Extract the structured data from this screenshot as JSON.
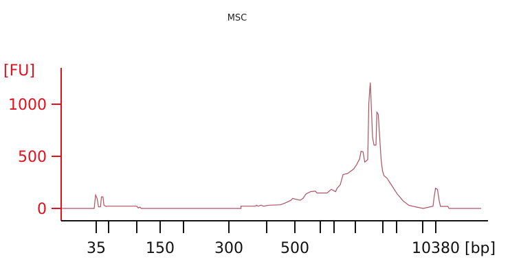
{
  "chart_data": {
    "type": "line",
    "title": "MSC",
    "xlabel": "[bp]",
    "ylabel": "[FU]",
    "x_scale": "ladder (nonlinear, log-like)",
    "x_ticks": [
      35,
      50,
      100,
      150,
      200,
      300,
      400,
      500,
      600,
      700,
      1000,
      2000,
      3000,
      7000,
      10380
    ],
    "x_tick_labels": [
      "35",
      "",
      "",
      "150",
      "",
      "300",
      "",
      "500",
      "",
      "",
      "",
      "",
      "",
      "",
      "10380"
    ],
    "y_ticks": [
      0,
      500,
      1000
    ],
    "y_tick_labels": [
      "0",
      "500",
      "1000"
    ],
    "ylim": [
      0,
      1300
    ],
    "grid": false,
    "legend": "none",
    "colors": {
      "trace": "#b0505e",
      "y_axis": "#e0101e",
      "x_axis": "#111111"
    },
    "series": [
      {
        "x": [
          13,
          33,
          34.4,
          35.9,
          37.4,
          39.6,
          40.7,
          42.5,
          43.7,
          46.4,
          50,
          50.4,
          52,
          100,
          102.7,
          105.4,
          108.2,
          329,
          329,
          368,
          370,
          375,
          383,
          391,
          407,
          446,
          463,
          485,
          491,
          519,
          530,
          542,
          560,
          579,
          586,
          647,
          679,
          718,
          737,
          776,
          814,
          880,
          974,
          1037,
          1114,
          1155,
          1215,
          1269,
          1365,
          1404,
          1456,
          1487,
          1542,
          1599,
          1682,
          1719,
          1782,
          1847,
          1915,
          1985,
          2070,
          2256,
          2568,
          3057,
          3690,
          4450,
          5370,
          7105,
          9560,
          9920,
          10310,
          10930,
          11520,
          11960,
          14950,
          15520,
          40720
        ],
        "y": [
          0,
          0,
          129,
          96,
          15,
          15,
          111,
          111,
          31,
          20,
          22,
          22,
          22,
          22,
          4,
          13,
          0,
          0,
          22,
          22,
          31,
          22,
          31,
          22,
          31,
          35,
          52,
          78,
          96,
          78,
          96,
          140,
          161,
          166,
          148,
          148,
          183,
          161,
          194,
          227,
          325,
          336,
          379,
          423,
          477,
          549,
          543,
          445,
          467,
          1012,
          1208,
          1033,
          685,
          608,
          608,
          924,
          903,
          685,
          467,
          358,
          314,
          292,
          227,
          140,
          74,
          31,
          17,
          0,
          22,
          118,
          194,
          183,
          74,
          20,
          20,
          0,
          0
        ]
      }
    ]
  }
}
